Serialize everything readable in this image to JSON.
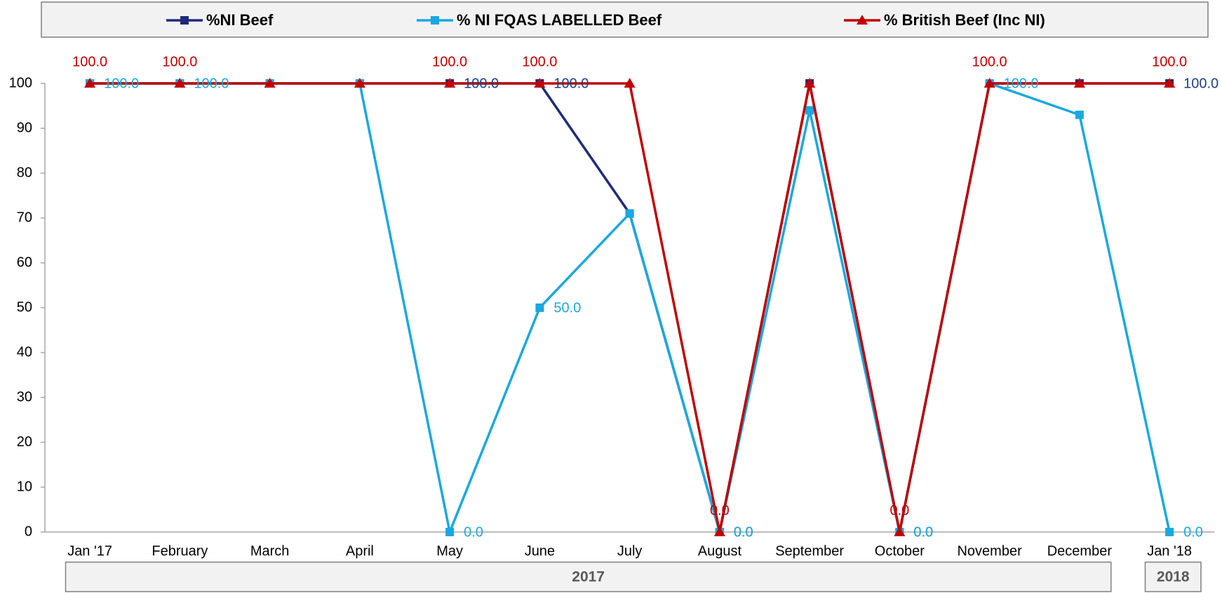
{
  "chart_data": {
    "type": "line",
    "categories": [
      "Jan '17",
      "February",
      "March",
      "April",
      "May",
      "June",
      "July",
      "August",
      "September",
      "October",
      "November",
      "December",
      "Jan '18"
    ],
    "groups": [
      {
        "label": "2017",
        "count": 12
      },
      {
        "label": "2018",
        "count": 1
      }
    ],
    "series": [
      {
        "name": "%NI Beef",
        "color": "#1f2a7a",
        "label_color": "#1f3f8a",
        "marker": "square",
        "label_position": "right",
        "values": [
          100,
          100,
          100,
          100,
          100,
          100,
          71,
          0,
          100,
          0,
          100,
          100,
          100
        ],
        "value_labels": [
          null,
          null,
          null,
          null,
          "100.0",
          "100.0",
          null,
          "0.0",
          null,
          "0.0",
          null,
          null,
          "100.0"
        ]
      },
      {
        "name": "% NI FQAS LABELLED Beef",
        "color": "#1aa8e0",
        "label_color": "#1aa8e0",
        "marker": "square",
        "label_position": "right",
        "values": [
          100,
          100,
          100,
          100,
          0,
          50,
          71,
          0,
          94,
          0,
          100,
          93,
          0
        ],
        "value_labels": [
          "100.0",
          "100.0",
          null,
          null,
          "0.0",
          "50.0",
          null,
          "0.0",
          null,
          "0.0",
          "100.0",
          null,
          "0.0"
        ]
      },
      {
        "name": "% British Beef (Inc NI)",
        "color": "#c00000",
        "label_color": "#c00000",
        "marker": "triangle",
        "label_position": "above",
        "values": [
          100,
          100,
          100,
          100,
          100,
          100,
          100,
          0,
          100,
          0,
          100,
          100,
          100
        ],
        "value_labels": [
          "100.0",
          "100.0",
          null,
          null,
          "100.0",
          "100.0",
          null,
          "0.0",
          null,
          "0.0",
          "100.0",
          null,
          "100.0"
        ]
      }
    ],
    "ylim": [
      0,
      100
    ],
    "yticks": [
      0,
      10,
      20,
      30,
      40,
      50,
      60,
      70,
      80,
      90,
      100
    ],
    "grid": false,
    "legend": "top"
  }
}
